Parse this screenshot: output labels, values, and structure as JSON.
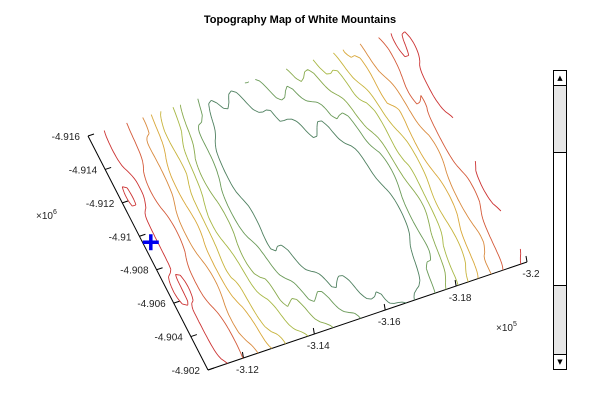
{
  "chart_data": {
    "type": "contour",
    "title": "Topography Map of White Mountains",
    "x_axis": {
      "ticks": [
        "-3.12",
        "-3.14",
        "-3.16",
        "-3.18",
        "-3.2"
      ],
      "tick_values": [
        -3.12,
        -3.14,
        -3.16,
        -3.18,
        -3.2
      ],
      "exponent_base": "×10",
      "exponent": "5",
      "range": [
        -3.11,
        -3.2
      ]
    },
    "y_axis": {
      "ticks": [
        "-4.902",
        "-4.904",
        "-4.906",
        "-4.908",
        "-4.91",
        "-4.912",
        "-4.914",
        "-4.916"
      ],
      "tick_values": [
        -4.902,
        -4.904,
        -4.906,
        -4.908,
        -4.91,
        -4.912,
        -4.914,
        -4.916
      ],
      "exponent_base": "×10",
      "exponent": "6",
      "range": [
        -4.902,
        -4.916
      ]
    },
    "contour_levels": [
      1,
      2,
      3,
      4,
      5,
      6,
      7,
      8,
      9
    ],
    "colormap": [
      "#cc3333",
      "#d45a3a",
      "#d98a3e",
      "#d9a83a",
      "#c8b43c",
      "#a8b845",
      "#88aa4c",
      "#6a9a58",
      "#4f8060"
    ],
    "grid": false,
    "marker": {
      "symbol": "+",
      "color": "#0000ee",
      "x": -3.112,
      "y": -4.9095
    }
  },
  "scrollbar": {
    "up_glyph": "▲",
    "down_glyph": "▼"
  }
}
